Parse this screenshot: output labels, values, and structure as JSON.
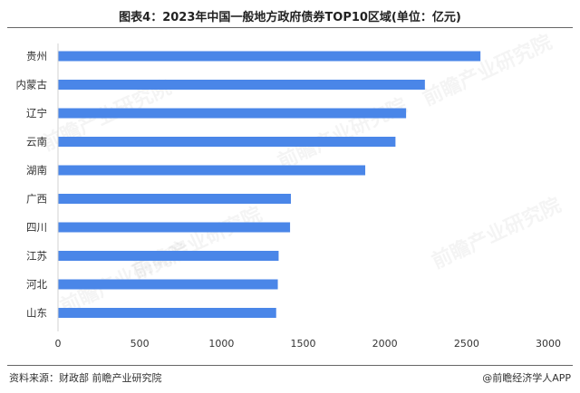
{
  "title": "图表4：2023年中国一般地方政府债券TOP10区域(单位：亿元)",
  "source": "资料来源：财政部 前瞻产业研究院",
  "credit": "@前瞻经济学人APP",
  "watermark_text": "前瞻产业研究院",
  "chart_data": {
    "type": "bar",
    "orientation": "horizontal",
    "categories": [
      "贵州",
      "内蒙古",
      "辽宁",
      "云南",
      "湖南",
      "广西",
      "四川",
      "江苏",
      "河北",
      "山东"
    ],
    "values": [
      2585,
      2245,
      2130,
      2065,
      1880,
      1425,
      1420,
      1350,
      1345,
      1335
    ],
    "xlim": [
      0,
      3000
    ],
    "xticks": [
      0,
      500,
      1000,
      1500,
      2000,
      2500,
      3000
    ],
    "bar_color": "#4a86e8",
    "grid": false,
    "legend": "none"
  }
}
